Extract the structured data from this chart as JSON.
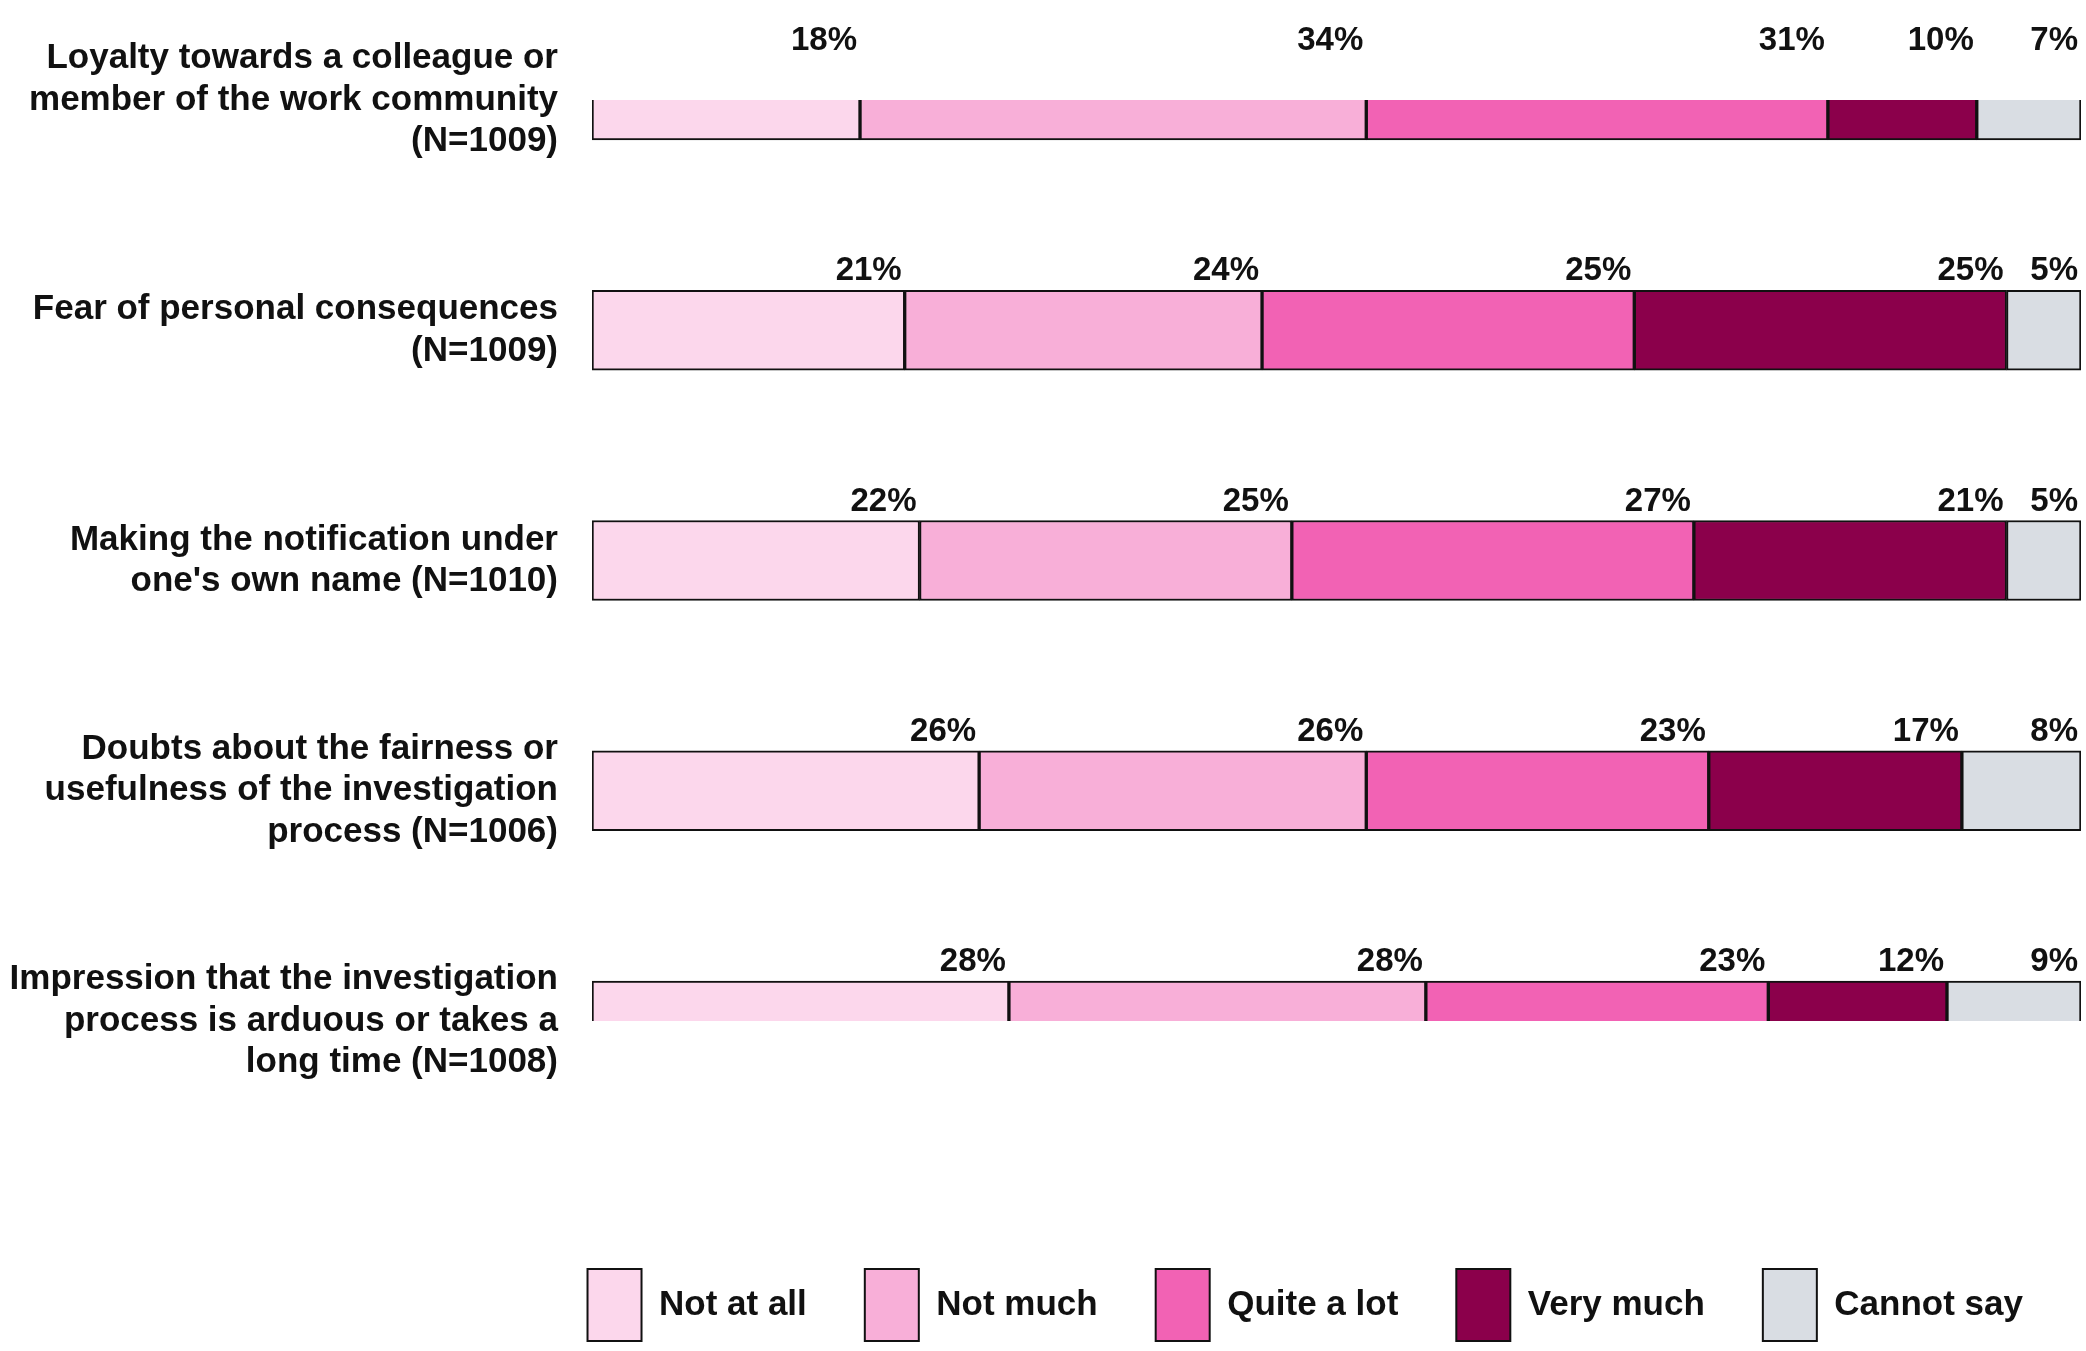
{
  "chart_data": {
    "type": "bar",
    "orientation": "horizontal",
    "stacked": true,
    "categories": [
      "Loyalty towards a colleague or member of the work community (N=1009)",
      "Fear of personal consequences (N=1009)",
      "Making the notification under one's own name (N=1010)",
      "Doubts about the fairness or usefulness of the investigation process (N=1006)",
      "Impression that the investigation process is arduous or takes a long time (N=1008)"
    ],
    "series": [
      {
        "name": "Not at all",
        "color": "#fcd7ec",
        "values": [
          18,
          21,
          22,
          26,
          28
        ],
        "value_labels": [
          "18%",
          "21%",
          "22%",
          "26%",
          "28%"
        ]
      },
      {
        "name": "Not much",
        "color": "#f8afd8",
        "values": [
          34,
          24,
          25,
          26,
          28
        ],
        "value_labels": [
          "34%",
          "24%",
          "25%",
          "26%",
          "28%"
        ]
      },
      {
        "name": "Quite a lot",
        "color": "#f262b4",
        "values": [
          31,
          25,
          27,
          23,
          23
        ],
        "value_labels": [
          "31%",
          "25%",
          "27%",
          "23%",
          "23%"
        ]
      },
      {
        "name": "Very much",
        "color": "#8b004b",
        "values": [
          10,
          25,
          21,
          17,
          12
        ],
        "value_labels": [
          "10%",
          "25%",
          "21%",
          "17%",
          "12%"
        ]
      },
      {
        "name": "Cannot say",
        "color": "#d9dde3",
        "values": [
          7,
          5,
          5,
          8,
          9
        ],
        "value_labels": [
          "7%",
          "5%",
          "5%",
          "8%",
          "9%"
        ]
      }
    ],
    "xlim": [
      0,
      100
    ],
    "tick_labels": "y",
    "legend": "bottom"
  }
}
